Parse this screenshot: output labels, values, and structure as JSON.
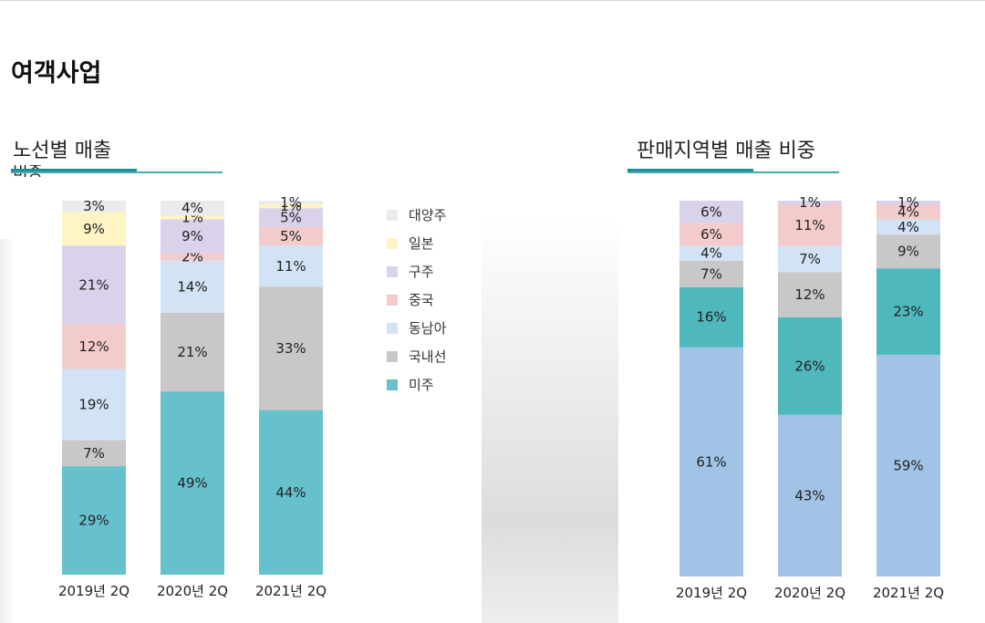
{
  "page_title": "여객사업",
  "left_title_line1": "노선별 매출",
  "left_title_line2": "비중",
  "right_title": "판매지역별 매출 비중",
  "colors": {
    "대양주": "#ebebeb",
    "일본": "#fff4c4",
    "구주": "#d9d2ea",
    "중국": "#f3cbcb",
    "동남아": "#d1e3f4",
    "국내선": "#c8c8c8",
    "미주": "#66c1cd",
    "region_1": "#a1c3e6",
    "region_2": "#4fb8bd"
  },
  "chart_data": [
    {
      "type": "bar",
      "stacked": true,
      "categories": [
        "2019년 2Q",
        "2020년 2Q",
        "2021년 2Q"
      ],
      "series": [
        {
          "name": "미주",
          "values": [
            29,
            49,
            44
          ]
        },
        {
          "name": "국내선",
          "values": [
            7,
            21,
            33
          ]
        },
        {
          "name": "동남아",
          "values": [
            19,
            14,
            11
          ]
        },
        {
          "name": "중국",
          "values": [
            12,
            2,
            5
          ]
        },
        {
          "name": "구주",
          "values": [
            21,
            9,
            5
          ]
        },
        {
          "name": "일본",
          "values": [
            9,
            1,
            1
          ]
        },
        {
          "name": "대양주",
          "values": [
            3,
            4,
            1
          ]
        }
      ],
      "labels": [
        [
          "29%",
          "49%",
          "44%"
        ],
        [
          "7%",
          "21%",
          "33%"
        ],
        [
          "19%",
          "14%",
          "11%"
        ],
        [
          "12%",
          "2%",
          "5%"
        ],
        [
          "21%",
          "9%",
          "5%"
        ],
        [
          "9%",
          "1%",
          "1%"
        ],
        [
          "3%",
          "4%",
          "1%"
        ]
      ],
      "legend": [
        "대양주",
        "일본",
        "구주",
        "중국",
        "동남아",
        "국내선",
        "미주"
      ],
      "legend_position": "right"
    },
    {
      "type": "bar",
      "stacked": true,
      "categories": [
        "2019년 2Q",
        "2020년 2Q",
        "2021년 2Q"
      ],
      "series": [
        {
          "values": [
            61,
            43,
            59
          ]
        },
        {
          "values": [
            16,
            26,
            23
          ]
        },
        {
          "values": [
            7,
            12,
            9
          ]
        },
        {
          "values": [
            4,
            7,
            4
          ]
        },
        {
          "values": [
            6,
            11,
            4
          ]
        },
        {
          "values": [
            6,
            0,
            0
          ]
        },
        {
          "values": [
            0,
            1,
            1
          ]
        }
      ],
      "labels": [
        [
          "61%",
          "43%",
          "59%"
        ],
        [
          "16%",
          "26%",
          "23%"
        ],
        [
          "7%",
          "12%",
          "9%"
        ],
        [
          "4%",
          "7%",
          "4%"
        ],
        [
          "6%",
          "11%",
          "4%"
        ],
        [
          "6%",
          "",
          ""
        ],
        [
          "",
          "1%",
          "1%"
        ]
      ]
    }
  ]
}
